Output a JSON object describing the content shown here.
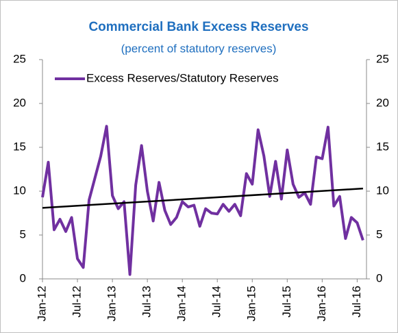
{
  "chart_data": {
    "type": "line",
    "title": "Commercial Bank Excess Reserves",
    "subtitle": "(percent of statutory reserves)",
    "categories": [
      "Jan-12",
      null,
      null,
      null,
      null,
      null,
      "Jul-12",
      null,
      null,
      null,
      null,
      null,
      "Jan-13",
      null,
      null,
      null,
      null,
      null,
      "Jul-13",
      null,
      null,
      null,
      null,
      null,
      "Jan-14",
      null,
      null,
      null,
      null,
      null,
      "Jul-14",
      null,
      null,
      null,
      null,
      null,
      "Jan-15",
      null,
      null,
      null,
      null,
      null,
      "Jul-15",
      null,
      null,
      null,
      null,
      null,
      "Jan-16",
      null,
      null,
      null,
      null,
      null,
      "Jul-16",
      null
    ],
    "series": [
      {
        "name": "Excess Reserves/Statutory Reserves",
        "color": "#7030a0",
        "values": [
          9.3,
          13.3,
          5.6,
          6.8,
          5.4,
          7.0,
          2.3,
          1.3,
          9.0,
          11.5,
          14.0,
          17.4,
          9.5,
          8.0,
          8.8,
          0.5,
          10.7,
          15.2,
          10.0,
          6.6,
          11.0,
          7.8,
          6.2,
          7.0,
          8.8,
          8.2,
          8.4,
          6.0,
          8.0,
          7.5,
          7.4,
          8.5,
          7.7,
          8.5,
          7.2,
          12.0,
          10.8,
          17.0,
          14.0,
          9.4,
          13.4,
          9.1,
          14.7,
          10.8,
          9.3,
          9.8,
          8.5,
          13.9,
          13.7,
          17.3,
          8.3,
          9.4,
          4.6,
          7.0,
          6.4,
          4.4
        ]
      }
    ],
    "trendline": {
      "color": "#000000",
      "values": [
        8.1,
        10.3
      ]
    },
    "ylim": [
      0,
      25
    ],
    "yticks": [
      0,
      5,
      10,
      15,
      20,
      25
    ],
    "y2lim": [
      0,
      25
    ],
    "y2ticks": [
      0,
      5,
      10,
      15,
      20,
      25
    ],
    "legend": "upper left"
  }
}
